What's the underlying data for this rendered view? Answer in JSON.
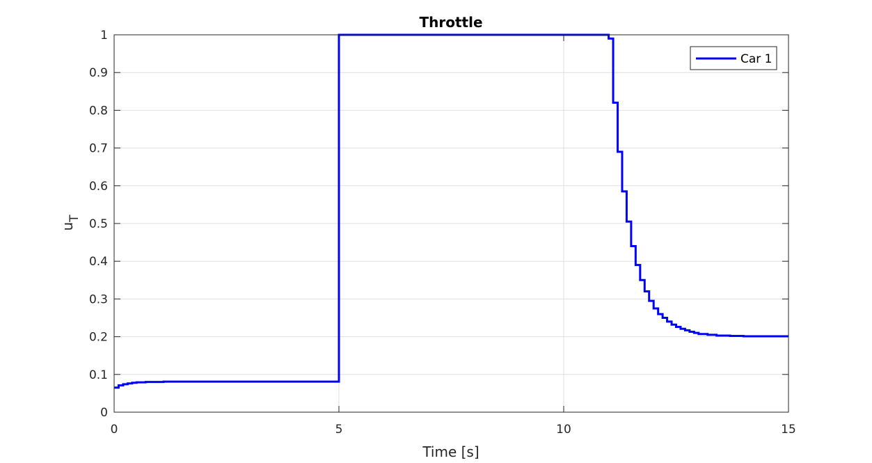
{
  "chart_data": {
    "type": "line",
    "title": "Throttle",
    "xlabel": "Time [s]",
    "ylabel": "u",
    "ylabel_subscript": "T",
    "xlim": [
      0,
      15
    ],
    "ylim": [
      0,
      1
    ],
    "xticks": [
      0,
      5,
      10,
      15
    ],
    "yticks": [
      0,
      0.1,
      0.2,
      0.3,
      0.4,
      0.5,
      0.6,
      0.7,
      0.8,
      0.9,
      1
    ],
    "grid": true,
    "legend_position": "top-right",
    "step": true,
    "series": [
      {
        "name": "Car 1",
        "color": "#0000ff",
        "x": [
          0,
          0.1,
          0.2,
          0.3,
          0.4,
          0.5,
          0.7,
          1.1,
          5.0,
          11.0,
          11.1,
          11.2,
          11.3,
          11.4,
          11.5,
          11.6,
          11.7,
          11.8,
          11.9,
          12.0,
          12.1,
          12.2,
          12.3,
          12.4,
          12.5,
          12.6,
          12.7,
          12.8,
          12.9,
          13.0,
          13.2,
          13.4,
          13.7,
          14.0,
          15.0
        ],
        "y": [
          0.065,
          0.071,
          0.074,
          0.076,
          0.078,
          0.079,
          0.08,
          0.081,
          1.0,
          0.99,
          0.82,
          0.69,
          0.585,
          0.505,
          0.44,
          0.39,
          0.35,
          0.32,
          0.295,
          0.275,
          0.26,
          0.25,
          0.24,
          0.232,
          0.226,
          0.221,
          0.217,
          0.213,
          0.21,
          0.207,
          0.205,
          0.203,
          0.202,
          0.201,
          0.201
        ]
      }
    ]
  }
}
